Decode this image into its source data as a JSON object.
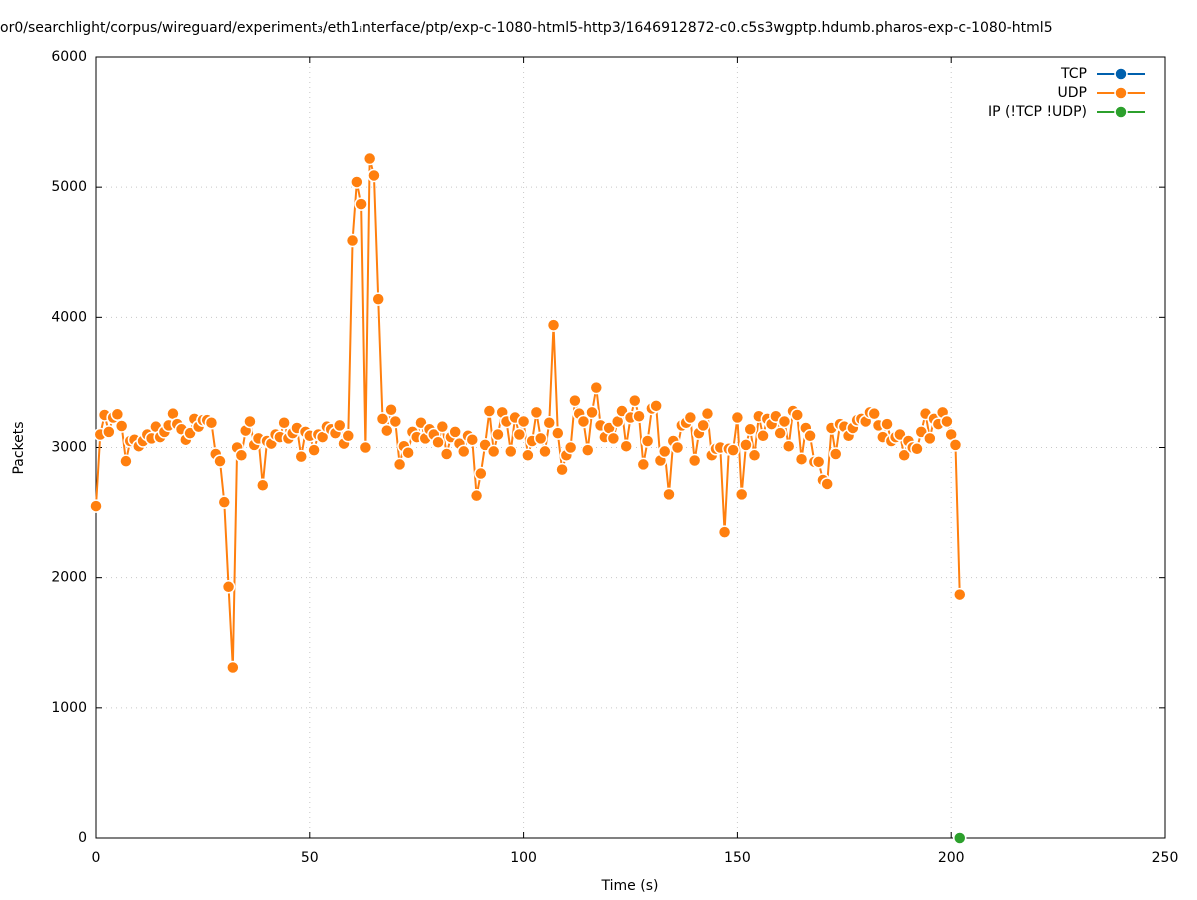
{
  "chart_data": {
    "type": "line",
    "title": "or0/searchlight/corpus/wireguard/experiment₃/eth1ᵢnterface/ptp/exp-c-1080-html5-http3/1646912872-c0.c5s3wgptp.hdumb.pharos-exp-c-1080-html5",
    "x_label": "Time (s)",
    "y_label": "Packets",
    "xlim": [
      0,
      250
    ],
    "xticks": [
      0,
      50,
      100,
      150,
      200,
      250
    ],
    "ylim": [
      0,
      6000
    ],
    "yticks": [
      0,
      1000,
      2000,
      3000,
      4000,
      5000,
      6000
    ],
    "grid": true,
    "legend": "top right",
    "series": [
      {
        "name": "TCP",
        "color": "#0060ad",
        "x": [],
        "values": []
      },
      {
        "name": "UDP",
        "color": "#ff7f0e",
        "x": [
          0,
          1,
          2,
          3,
          4,
          5,
          6,
          7,
          8,
          9,
          10,
          11,
          12,
          13,
          14,
          15,
          16,
          17,
          18,
          19,
          20,
          21,
          22,
          23,
          24,
          25,
          26,
          27,
          28,
          29,
          30,
          31,
          32,
          33,
          34,
          35,
          36,
          37,
          38,
          39,
          40,
          41,
          42,
          43,
          44,
          45,
          46,
          47,
          48,
          49,
          50,
          51,
          52,
          53,
          54,
          55,
          56,
          57,
          58,
          59,
          60,
          61,
          62,
          63,
          64,
          65,
          66,
          67,
          68,
          69,
          70,
          71,
          72,
          73,
          74,
          75,
          76,
          77,
          78,
          79,
          80,
          81,
          82,
          83,
          84,
          85,
          86,
          87,
          88,
          89,
          90,
          91,
          92,
          93,
          94,
          95,
          96,
          97,
          98,
          99,
          100,
          101,
          102,
          103,
          104,
          105,
          106,
          107,
          108,
          109,
          110,
          111,
          112,
          113,
          114,
          115,
          116,
          117,
          118,
          119,
          120,
          121,
          122,
          123,
          124,
          125,
          126,
          127,
          128,
          129,
          130,
          131,
          132,
          133,
          134,
          135,
          136,
          137,
          138,
          139,
          140,
          141,
          142,
          143,
          144,
          145,
          146,
          147,
          148,
          149,
          150,
          151,
          152,
          153,
          154,
          155,
          156,
          157,
          158,
          159,
          160,
          161,
          162,
          163,
          164,
          165,
          166,
          167,
          168,
          169,
          170,
          171,
          172,
          173,
          174,
          175,
          176,
          177,
          178,
          179,
          180,
          181,
          182,
          183,
          184,
          185,
          186,
          187,
          188,
          189,
          190,
          191,
          192,
          193,
          194,
          195,
          196,
          197,
          198,
          199,
          200,
          201,
          202
        ],
        "values": [
          2550,
          3100,
          3250,
          3120,
          3230,
          3255,
          3165,
          2895,
          3050,
          3060,
          3010,
          3050,
          3100,
          3070,
          3160,
          3080,
          3120,
          3170,
          3260,
          3180,
          3140,
          3060,
          3110,
          3220,
          3160,
          3210,
          3210,
          3190,
          2950,
          2895,
          2580,
          1930,
          1310,
          3000,
          2940,
          3130,
          3200,
          3020,
          3070,
          2710,
          3050,
          3030,
          3100,
          3080,
          3190,
          3070,
          3110,
          3150,
          2930,
          3120,
          3090,
          2980,
          3100,
          3080,
          3160,
          3140,
          3110,
          3170,
          3030,
          3090,
          4590,
          5040,
          4870,
          3000,
          5220,
          5090,
          4140,
          3220,
          3130,
          3290,
          3200,
          2870,
          3010,
          2960,
          3120,
          3080,
          3190,
          3070,
          3140,
          3100,
          3040,
          3160,
          2950,
          3080,
          3120,
          3030,
          2970,
          3090,
          3060,
          2630,
          2800,
          3020,
          3280,
          2970,
          3100,
          3270,
          3200,
          2970,
          3230,
          3100,
          3200,
          2940,
          3050,
          3270,
          3070,
          2970,
          3190,
          3940,
          3110,
          2830,
          2940,
          3000,
          3360,
          3260,
          3200,
          2980,
          3270,
          3460,
          3170,
          3080,
          3150,
          3070,
          3200,
          3280,
          3010,
          3230,
          3360,
          3240,
          2870,
          3050,
          3300,
          3320,
          2900,
          2970,
          2640,
          3050,
          3000,
          3170,
          3190,
          3230,
          2900,
          3110,
          3170,
          3260,
          2940,
          2990,
          3000,
          2350,
          2990,
          2980,
          3230,
          2640,
          3020,
          3140,
          2940,
          3240,
          3090,
          3220,
          3180,
          3240,
          3110,
          3200,
          3010,
          3280,
          3250,
          2910,
          3150,
          3090,
          2890,
          2890,
          2750,
          2720,
          3150,
          2950,
          3180,
          3160,
          3090,
          3150,
          3210,
          3220,
          3200,
          3270,
          3260,
          3170,
          3080,
          3180,
          3050,
          3080,
          3100,
          2940,
          3050,
          3000,
          2990,
          3120,
          3260,
          3070,
          3220,
          3180,
          3270,
          3200,
          3100,
          3020,
          1870
        ]
      },
      {
        "name": "IP (!TCP  !UDP)",
        "color": "#2ca02c",
        "x": [
          202
        ],
        "values": [
          0
        ]
      }
    ]
  }
}
